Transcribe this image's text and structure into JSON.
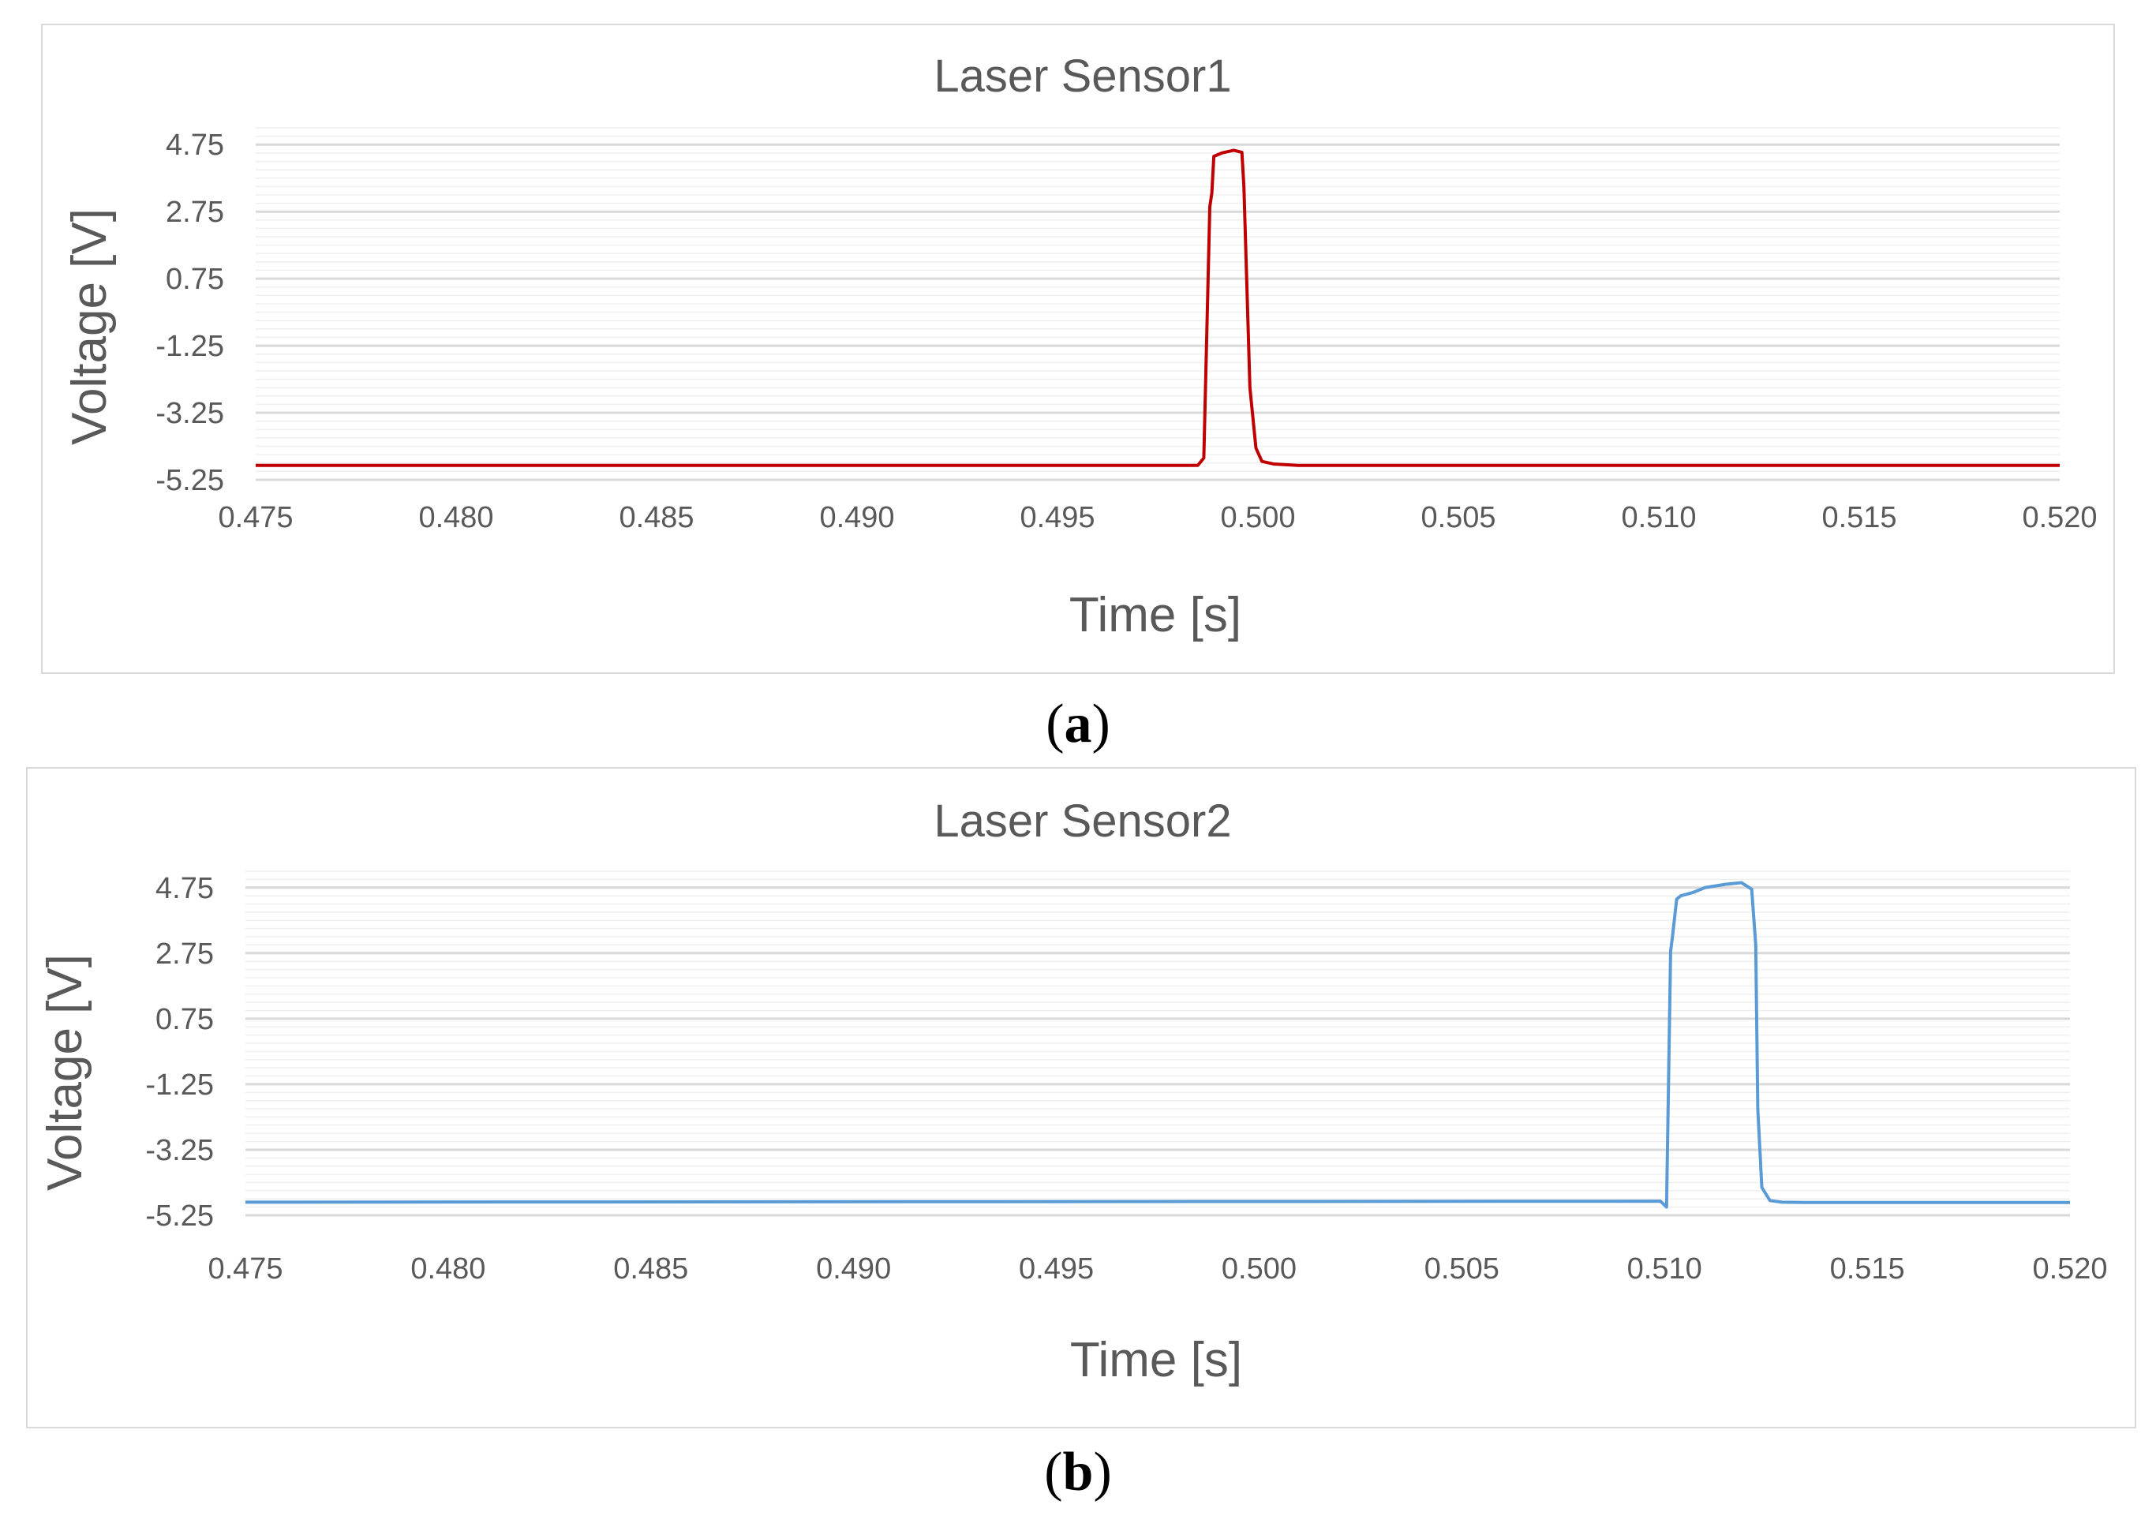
{
  "colors": {
    "series_a": "#c00000",
    "series_b": "#5b9bd5",
    "grid_major": "#d9d9d9",
    "grid_minor": "#efefef",
    "text": "#595959",
    "border": "#d9d9d9"
  },
  "chart_data": [
    {
      "type": "line",
      "title": "Laser Sensor1",
      "xlabel": "Time [s]",
      "ylabel": "Voltage [V]",
      "xlim": [
        0.475,
        0.52
      ],
      "ylim": [
        -5.25,
        5.25
      ],
      "x_ticks": [
        "0.475",
        "0.480",
        "0.485",
        "0.490",
        "0.495",
        "0.500",
        "0.505",
        "0.510",
        "0.515",
        "0.520"
      ],
      "y_ticks": [
        "4.75",
        "2.75",
        "0.75",
        "-1.25",
        "-3.25",
        "-5.25"
      ],
      "grid": true,
      "legend": "none",
      "series": [
        {
          "color": "#c00000",
          "x": [
            0.475,
            0.4985,
            0.49865,
            0.4988,
            0.49885,
            0.4989,
            0.4991,
            0.4994,
            0.4996,
            0.49965,
            0.4998,
            0.49995,
            0.5001,
            0.5004,
            0.501,
            0.52
          ],
          "y": [
            -4.82,
            -4.82,
            -4.6,
            2.9,
            3.3,
            4.4,
            4.5,
            4.58,
            4.52,
            3.5,
            -2.5,
            -4.3,
            -4.7,
            -4.78,
            -4.82,
            -4.82
          ]
        }
      ]
    },
    {
      "type": "line",
      "title": "Laser Sensor2",
      "xlabel": "Time [s]",
      "ylabel": "Voltage [V]",
      "xlim": [
        0.475,
        0.52
      ],
      "ylim": [
        -5.25,
        5.25
      ],
      "x_ticks": [
        "0.475",
        "0.480",
        "0.485",
        "0.490",
        "0.495",
        "0.500",
        "0.505",
        "0.510",
        "0.515",
        "0.520"
      ],
      "y_ticks": [
        "4.75",
        "2.75",
        "0.75",
        "-1.25",
        "-3.25",
        "-5.25"
      ],
      "grid": true,
      "legend": "none",
      "series": [
        {
          "color": "#5b9bd5",
          "x": [
            0.475,
            0.5099,
            0.51005,
            0.51015,
            0.5102,
            0.5103,
            0.5104,
            0.5107,
            0.511,
            0.5115,
            0.5119,
            0.51215,
            0.51225,
            0.5123,
            0.5124,
            0.5126,
            0.5129,
            0.5135,
            0.52
          ],
          "y": [
            -4.85,
            -4.82,
            -5.0,
            2.8,
            3.3,
            4.4,
            4.5,
            4.6,
            4.75,
            4.85,
            4.9,
            4.7,
            3.0,
            -2.0,
            -4.4,
            -4.8,
            -4.85,
            -4.86,
            -4.86
          ]
        }
      ]
    }
  ],
  "captions": {
    "a": "a",
    "b": "b"
  }
}
